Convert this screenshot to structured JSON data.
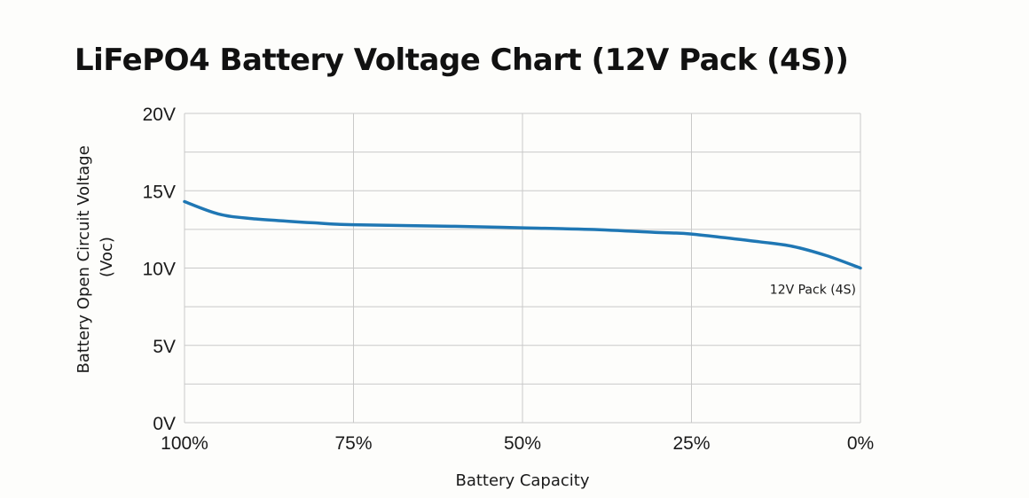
{
  "chart_data": {
    "type": "line",
    "title": "LiFePO4 Battery Voltage Chart (12V Pack (4S))",
    "xlabel": "Battery Capacity",
    "ylabel_lines": [
      "Battery Open Circuit Voltage",
      "(Voc)"
    ],
    "x_categories": [
      "100%",
      "75%",
      "50%",
      "25%",
      "0%"
    ],
    "x_values": [
      100,
      75,
      50,
      25,
      0
    ],
    "xlim": [
      100,
      0
    ],
    "y_tick_labels": [
      "0V",
      "5V",
      "10V",
      "15V",
      "20V"
    ],
    "y_ticks": [
      0,
      5,
      10,
      15,
      20
    ],
    "ylim": [
      0,
      20
    ],
    "grid": true,
    "series": [
      {
        "name": "12V Pack (4S)",
        "color": "#1f77b4",
        "points": [
          {
            "x": 100,
            "y": 14.3
          },
          {
            "x": 95,
            "y": 13.5
          },
          {
            "x": 90,
            "y": 13.2
          },
          {
            "x": 80,
            "y": 12.9
          },
          {
            "x": 75,
            "y": 12.8
          },
          {
            "x": 60,
            "y": 12.7
          },
          {
            "x": 50,
            "y": 12.6
          },
          {
            "x": 40,
            "y": 12.5
          },
          {
            "x": 30,
            "y": 12.3
          },
          {
            "x": 25,
            "y": 12.2
          },
          {
            "x": 15,
            "y": 11.7
          },
          {
            "x": 10,
            "y": 11.4
          },
          {
            "x": 5,
            "y": 10.8
          },
          {
            "x": 0,
            "y": 10.0
          }
        ]
      }
    ]
  }
}
